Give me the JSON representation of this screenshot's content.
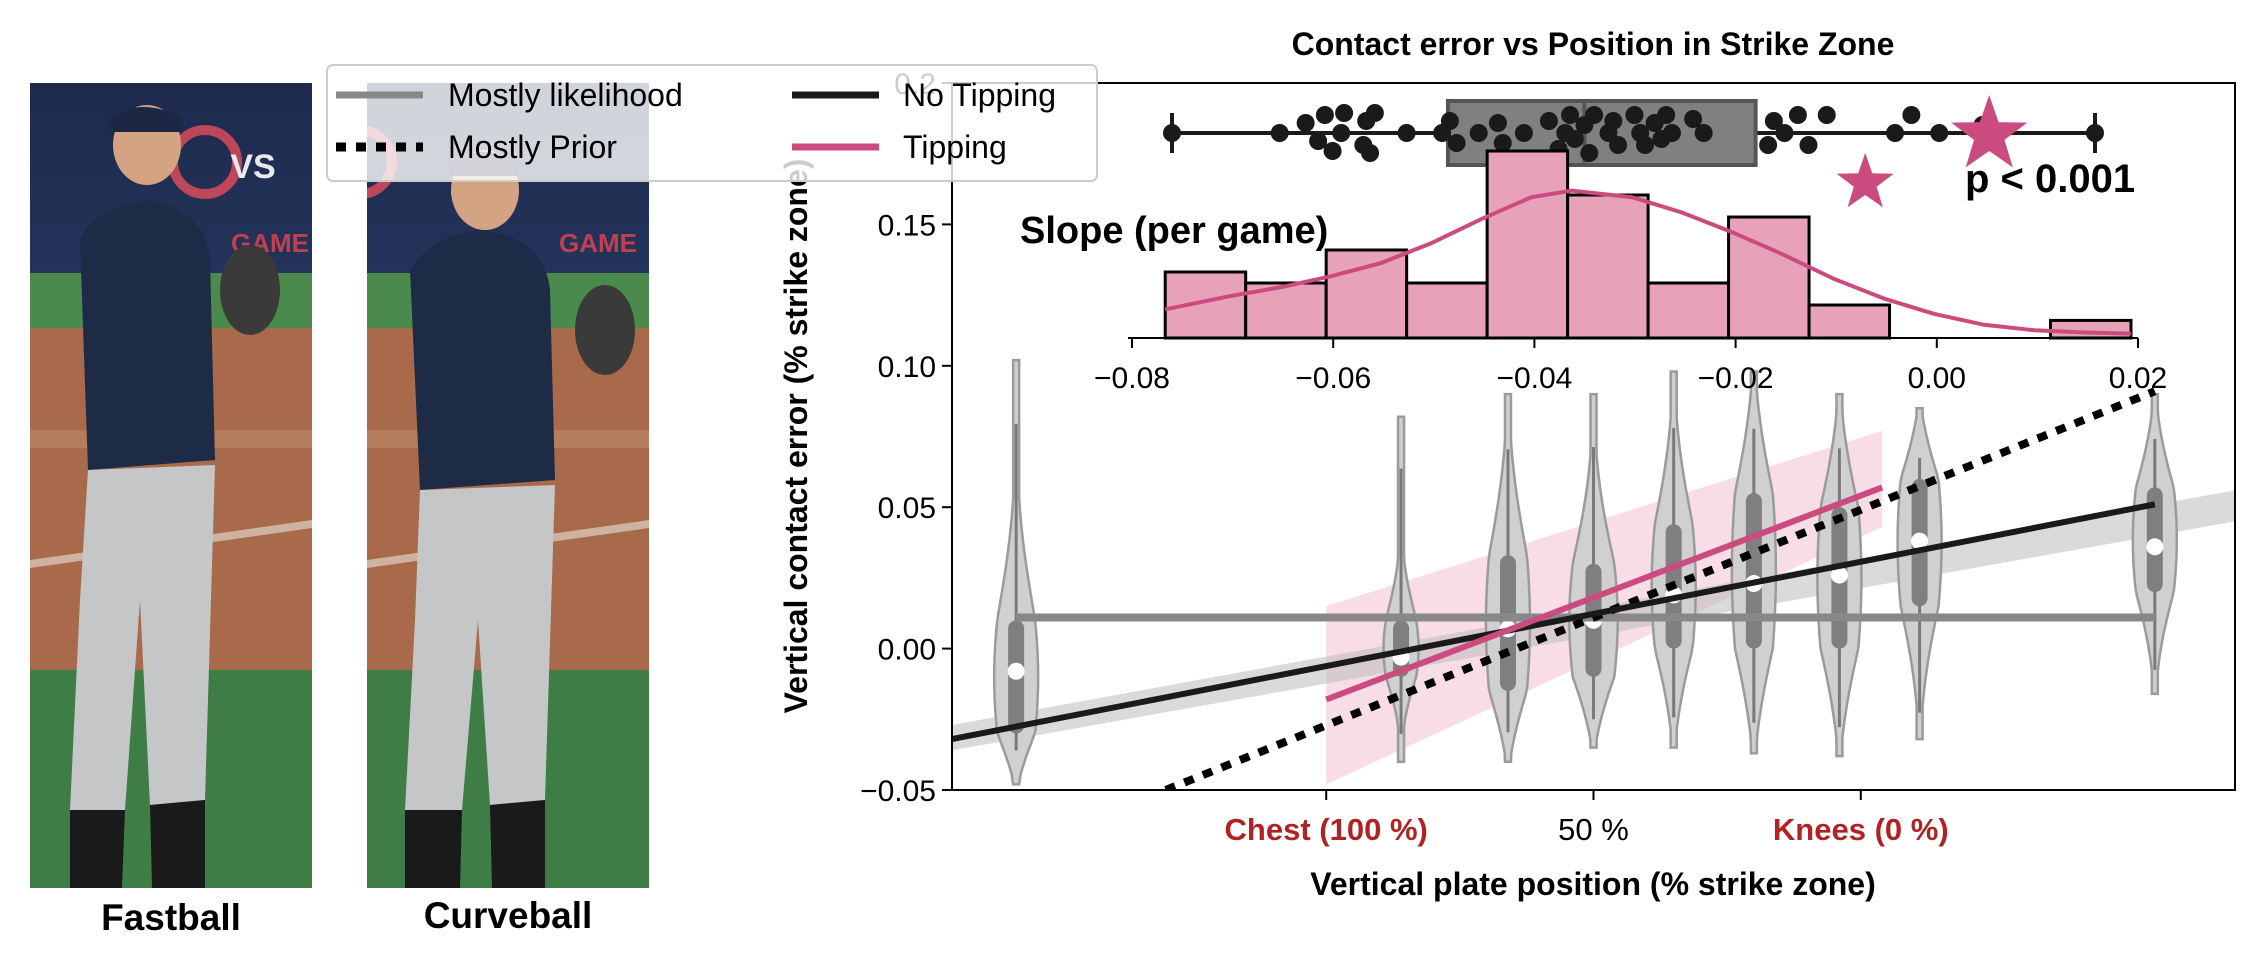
{
  "photos": [
    {
      "caption": "Fastball"
    },
    {
      "caption": "Curveball"
    }
  ],
  "colors": {
    "tipping": "#cc4b7f",
    "hist_fill": "#e7a2ba",
    "violin": "#d0d0d0",
    "violin_edge": "#9b9b9b",
    "likelihood": "#888888",
    "no_tipping": "#1a1a1a",
    "x_highlight": "#b22222",
    "jersey": "#1e2b47",
    "pants": "#c5c6c8",
    "dirt": "#a86a4a",
    "grass": "#3f7d46"
  },
  "legend": {
    "placement": "top-left",
    "entries": [
      {
        "label": "Mostly likelihood",
        "style": "solid-gray"
      },
      {
        "label": "Mostly Prior",
        "style": "dotted-black"
      },
      {
        "label": "No Tipping",
        "style": "solid-black"
      },
      {
        "label": "Tipping",
        "style": "solid-pink"
      }
    ]
  },
  "chart_data": [
    {
      "type": "violin",
      "title": "Contact error vs Position in Strike Zone",
      "xlabel": "Vertical plate position (% strike zone)",
      "ylabel": "Vertical contact error (% strike zone)",
      "ylim": [
        -0.05,
        0.2
      ],
      "xlim": [
        0,
        240
      ],
      "x_ticks": [
        {
          "x": 70,
          "label": "Chest (100 %)",
          "highlight": true
        },
        {
          "x": 120,
          "label": "50 %",
          "highlight": false
        },
        {
          "x": 170,
          "label": "Knees (0 %)",
          "highlight": true
        }
      ],
      "y_ticks": [
        -0.05,
        0.0,
        0.05,
        0.1,
        0.15,
        0.2
      ],
      "y_tick_labels": [
        "−0.05",
        "0.00",
        "0.05",
        "0.10",
        "0.15",
        "0.2"
      ],
      "violins": [
        {
          "x": 12,
          "median": -0.008,
          "q1": -0.03,
          "q3": 0.01,
          "min": -0.048,
          "max": 0.102,
          "halfwidth": 5
        },
        {
          "x": 84,
          "median": -0.003,
          "q1": -0.01,
          "q3": 0.01,
          "min": -0.04,
          "max": 0.082,
          "halfwidth": 4
        },
        {
          "x": 104,
          "median": 0.007,
          "q1": -0.015,
          "q3": 0.033,
          "min": -0.04,
          "max": 0.09,
          "halfwidth": 5
        },
        {
          "x": 120,
          "median": 0.01,
          "q1": -0.01,
          "q3": 0.03,
          "min": -0.035,
          "max": 0.09,
          "halfwidth": 5.5
        },
        {
          "x": 135,
          "median": 0.019,
          "q1": 0.0,
          "q3": 0.044,
          "min": -0.035,
          "max": 0.098,
          "halfwidth": 5
        },
        {
          "x": 150,
          "median": 0.023,
          "q1": 0.0,
          "q3": 0.055,
          "min": -0.037,
          "max": 0.098,
          "halfwidth": 5
        },
        {
          "x": 166,
          "median": 0.026,
          "q1": 0.0,
          "q3": 0.05,
          "min": -0.038,
          "max": 0.09,
          "halfwidth": 5
        },
        {
          "x": 181,
          "median": 0.038,
          "q1": 0.015,
          "q3": 0.06,
          "min": -0.032,
          "max": 0.085,
          "halfwidth": 5
        },
        {
          "x": 225,
          "median": 0.036,
          "q1": 0.02,
          "q3": 0.057,
          "min": -0.016,
          "max": 0.09,
          "halfwidth": 5
        }
      ],
      "lines": [
        {
          "name": "Mostly likelihood",
          "x": [
            12,
            225
          ],
          "y": [
            0.011,
            0.011
          ]
        },
        {
          "name": "Mostly Prior",
          "x": [
            40,
            225
          ],
          "y": [
            -0.05,
            0.091
          ]
        },
        {
          "name": "No Tipping",
          "x": [
            0,
            225
          ],
          "y": [
            -0.032,
            0.051
          ]
        },
        {
          "name": "Tipping",
          "x": [
            70,
            174
          ],
          "y": [
            -0.018,
            0.057
          ]
        }
      ],
      "bands": [
        {
          "name": "Tipping",
          "x": [
            70,
            174
          ],
          "lower": [
            -0.048,
            0.043
          ],
          "upper": [
            0.015,
            0.077
          ]
        },
        {
          "name": "No Tipping",
          "x": [
            0,
            240
          ],
          "lower": [
            -0.036,
            0.045
          ],
          "upper": [
            -0.027,
            0.056
          ]
        }
      ]
    },
    {
      "type": "histogram",
      "title": "Slope (per game)",
      "xlim": [
        -0.08,
        0.02
      ],
      "x_ticks": [
        -0.08,
        -0.06,
        -0.04,
        -0.02,
        0.0,
        0.02
      ],
      "x_tick_labels": [
        "−0.08",
        "−0.06",
        "−0.04",
        "−0.02",
        "0.00",
        "0.02"
      ],
      "bins": [
        {
          "x0": -0.0764,
          "x1": -0.0684,
          "count": 3
        },
        {
          "x0": -0.0684,
          "x1": -0.0604,
          "count": 2.5
        },
        {
          "x0": -0.0604,
          "x1": -0.0524,
          "count": 4
        },
        {
          "x0": -0.0524,
          "x1": -0.0444,
          "count": 2.5
        },
        {
          "x0": -0.0444,
          "x1": -0.0364,
          "count": 8.5
        },
        {
          "x0": -0.0364,
          "x1": -0.0284,
          "count": 6.5
        },
        {
          "x0": -0.0284,
          "x1": -0.0204,
          "count": 2.5
        },
        {
          "x0": -0.0204,
          "x1": -0.0124,
          "count": 5.5
        },
        {
          "x0": -0.0124,
          "x1": -0.0044,
          "count": 1.5
        },
        {
          "x0": -0.0044,
          "x1": 0.0036,
          "count": 0
        },
        {
          "x0": 0.0036,
          "x1": 0.0116,
          "count": 0
        },
        {
          "x0": 0.0116,
          "x1": 0.0196,
          "count": 0.8
        }
      ],
      "kde": {
        "x": [
          -0.0764,
          -0.07,
          -0.065,
          -0.06,
          -0.055,
          -0.05,
          -0.045,
          -0.04,
          -0.036,
          -0.03,
          -0.025,
          -0.02,
          -0.015,
          -0.01,
          -0.005,
          0.0,
          0.005,
          0.01,
          0.015,
          0.0196
        ],
        "y": [
          1.3,
          1.9,
          2.3,
          2.8,
          3.4,
          4.3,
          5.4,
          6.4,
          6.7,
          6.4,
          5.7,
          4.8,
          3.8,
          2.7,
          1.8,
          1.1,
          0.6,
          0.35,
          0.25,
          0.2
        ]
      },
      "annotation": "p < 0.001"
    },
    {
      "type": "box_strip",
      "xlim": [
        -0.08,
        0.02
      ],
      "box": {
        "min": -0.0764,
        "q1": -0.0477,
        "median": -0.0335,
        "q3": -0.0157,
        "max": 0.0196
      },
      "points": [
        {
          "x": -0.0764,
          "y": 0
        },
        {
          "x": -0.0652,
          "y": 0
        },
        {
          "x": -0.0625,
          "y": 0.5
        },
        {
          "x": -0.0612,
          "y": -0.4
        },
        {
          "x": -0.0605,
          "y": 0.9
        },
        {
          "x": -0.0597,
          "y": -0.9
        },
        {
          "x": -0.0588,
          "y": 0
        },
        {
          "x": -0.0585,
          "y": 1.0
        },
        {
          "x": -0.0562,
          "y": 0.6
        },
        {
          "x": -0.0565,
          "y": -0.6
        },
        {
          "x": -0.0558,
          "y": -1.0
        },
        {
          "x": -0.0553,
          "y": 1.0
        },
        {
          "x": -0.052,
          "y": 0
        },
        {
          "x": -0.0483,
          "y": 0
        },
        {
          "x": -0.0475,
          "y": 0.6
        },
        {
          "x": -0.0468,
          "y": -0.5
        },
        {
          "x": -0.0445,
          "y": 0
        },
        {
          "x": -0.0425,
          "y": 0.5
        },
        {
          "x": -0.042,
          "y": -0.5
        },
        {
          "x": -0.0398,
          "y": 0
        },
        {
          "x": -0.0372,
          "y": 0.6
        },
        {
          "x": -0.0362,
          "y": -0.8
        },
        {
          "x": -0.0355,
          "y": 0
        },
        {
          "x": -0.035,
          "y": 0.9
        },
        {
          "x": -0.0345,
          "y": -0.3
        },
        {
          "x": -0.0335,
          "y": 0.4
        },
        {
          "x": -0.033,
          "y": -1.0
        },
        {
          "x": -0.0325,
          "y": 0.9
        },
        {
          "x": -0.031,
          "y": 0
        },
        {
          "x": -0.0305,
          "y": 0.6
        },
        {
          "x": -0.03,
          "y": -0.6
        },
        {
          "x": -0.0283,
          "y": 0.9
        },
        {
          "x": -0.0277,
          "y": 0
        },
        {
          "x": -0.0272,
          "y": -0.6
        },
        {
          "x": -0.0262,
          "y": 0.5
        },
        {
          "x": -0.0255,
          "y": -0.3
        },
        {
          "x": -0.025,
          "y": 0.9
        },
        {
          "x": -0.0244,
          "y": 0
        },
        {
          "x": -0.0222,
          "y": 0.7
        },
        {
          "x": -0.0211,
          "y": 0
        },
        {
          "x": -0.0144,
          "y": -0.6
        },
        {
          "x": -0.0138,
          "y": 0.6
        },
        {
          "x": -0.0127,
          "y": 0
        },
        {
          "x": -0.0113,
          "y": 0.9
        },
        {
          "x": -0.0102,
          "y": -0.6
        },
        {
          "x": -0.0083,
          "y": 0.9
        },
        {
          "x": -0.0012,
          "y": 0
        },
        {
          "x": 0.0005,
          "y": 0.9
        },
        {
          "x": 0.0034,
          "y": 0
        },
        {
          "x": 0.0079,
          "y": 0.4
        },
        {
          "x": 0.0196,
          "y": 0
        }
      ],
      "stars": [
        {
          "x": 0.0086,
          "size": "large",
          "name": "Tipping"
        },
        {
          "x": -0.0043,
          "size": "small",
          "name": "Tipping"
        }
      ]
    }
  ]
}
